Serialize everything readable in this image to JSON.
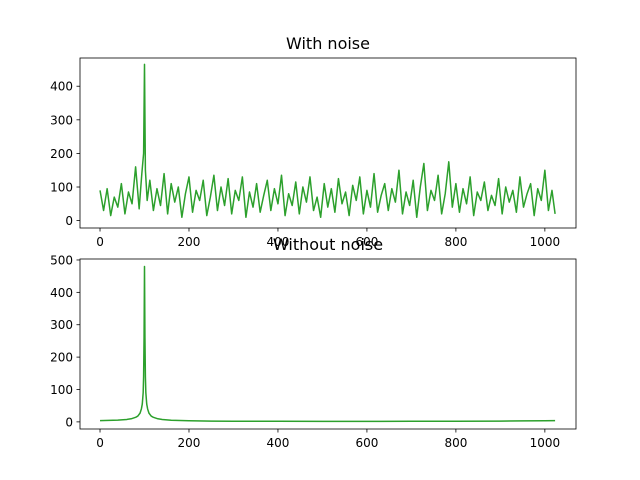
{
  "chart_data": [
    {
      "type": "line",
      "title": "With noise",
      "xlabel": "",
      "ylabel": "",
      "xlim": [
        -45,
        1070
      ],
      "ylim": [
        -22,
        484
      ],
      "xticks": [
        0,
        200,
        400,
        600,
        800,
        1000
      ],
      "yticks": [
        0,
        100,
        200,
        300,
        400
      ],
      "grid": false,
      "series": [
        {
          "color": "#2ca02c",
          "x": [
            0,
            8,
            16,
            24,
            32,
            40,
            48,
            56,
            64,
            72,
            80,
            88,
            94,
            98,
            100,
            102,
            106,
            112,
            120,
            128,
            136,
            144,
            152,
            160,
            168,
            176,
            184,
            192,
            200,
            208,
            216,
            224,
            232,
            240,
            248,
            256,
            264,
            272,
            280,
            288,
            296,
            304,
            312,
            320,
            328,
            336,
            344,
            352,
            360,
            368,
            376,
            384,
            392,
            400,
            408,
            416,
            424,
            432,
            440,
            448,
            456,
            464,
            472,
            480,
            488,
            496,
            504,
            512,
            520,
            528,
            536,
            544,
            552,
            560,
            568,
            576,
            584,
            592,
            600,
            608,
            616,
            624,
            632,
            640,
            648,
            656,
            664,
            672,
            680,
            688,
            696,
            704,
            712,
            720,
            728,
            736,
            744,
            752,
            760,
            768,
            776,
            784,
            792,
            800,
            808,
            816,
            824,
            832,
            840,
            848,
            856,
            864,
            872,
            880,
            888,
            896,
            904,
            912,
            920,
            928,
            936,
            944,
            952,
            960,
            968,
            976,
            984,
            992,
            1000,
            1008,
            1016,
            1023
          ],
          "y": [
            90,
            30,
            95,
            15,
            70,
            40,
            110,
            20,
            85,
            50,
            160,
            35,
            140,
            200,
            465,
            150,
            60,
            120,
            30,
            95,
            45,
            140,
            20,
            110,
            55,
            100,
            10,
            80,
            130,
            25,
            90,
            60,
            120,
            15,
            70,
            135,
            30,
            100,
            45,
            125,
            20,
            90,
            60,
            130,
            10,
            85,
            40,
            110,
            25,
            75,
            120,
            30,
            95,
            50,
            135,
            15,
            80,
            45,
            115,
            20,
            100,
            55,
            130,
            30,
            70,
            10,
            110,
            40,
            95,
            25,
            125,
            50,
            85,
            15,
            105,
            60,
            130,
            20,
            90,
            40,
            140,
            25,
            75,
            110,
            30,
            95,
            55,
            150,
            20,
            85,
            45,
            120,
            10,
            100,
            170,
            30,
            90,
            60,
            135,
            20,
            80,
            175,
            40,
            110,
            25,
            95,
            50,
            130,
            15,
            85,
            60,
            115,
            30,
            75,
            45,
            125,
            20,
            100,
            55,
            90,
            25,
            130,
            40,
            80,
            110,
            15,
            95,
            60,
            150,
            30,
            90,
            20
          ]
        }
      ]
    },
    {
      "type": "line",
      "title": "Without noise",
      "xlabel": "",
      "ylabel": "",
      "xlim": [
        -45,
        1070
      ],
      "ylim": [
        -22,
        503
      ],
      "xticks": [
        0,
        200,
        400,
        600,
        800,
        1000
      ],
      "yticks": [
        0,
        100,
        200,
        300,
        400,
        500
      ],
      "grid": false,
      "series": [
        {
          "color": "#2ca02c",
          "x": [
            0,
            20,
            40,
            60,
            70,
            80,
            85,
            90,
            93,
            95,
            97,
            98,
            99,
            100,
            101,
            102,
            103,
            105,
            107,
            110,
            115,
            120,
            130,
            140,
            160,
            200,
            250,
            300,
            400,
            500,
            600,
            700,
            800,
            900,
            950,
            1000,
            1023
          ],
          "y": [
            4,
            4.5,
            5.5,
            7.5,
            9.5,
            14,
            18,
            27,
            40,
            55,
            90,
            140,
            260,
            480,
            260,
            140,
            90,
            55,
            40,
            27,
            18,
            14,
            9.5,
            7.5,
            5,
            3.5,
            2.5,
            2,
            1.8,
            1.7,
            1.7,
            1.8,
            2,
            2.5,
            3,
            3.5,
            4
          ]
        }
      ]
    }
  ]
}
